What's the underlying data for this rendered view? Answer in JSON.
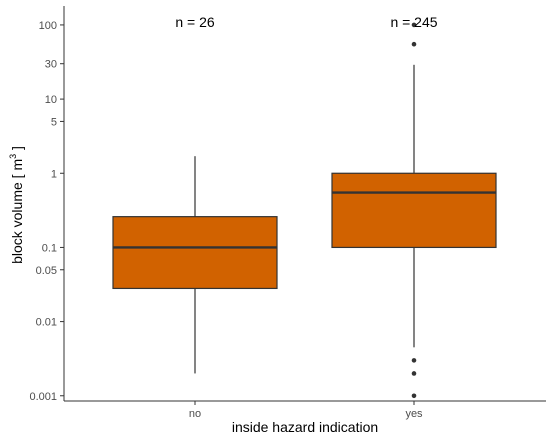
{
  "chart_data": {
    "type": "box",
    "ylabel": "block volume [ m",
    "ylabel_superscript": "3",
    "ylabel_suffix": " ]",
    "xlabel": "inside hazard indication",
    "yscale": "log",
    "ylim": [
      0.00085,
      180
    ],
    "yticks": [
      {
        "value": 0.001,
        "label": "0.001"
      },
      {
        "value": 0.01,
        "label": "0.01"
      },
      {
        "value": 0.05,
        "label": "0.05"
      },
      {
        "value": 0.1,
        "label": "0.1"
      },
      {
        "value": 1,
        "label": "1"
      },
      {
        "value": 5,
        "label": "5"
      },
      {
        "value": 10,
        "label": "10"
      },
      {
        "value": 30,
        "label": "30"
      },
      {
        "value": 100,
        "label": "100"
      }
    ],
    "categories": [
      "no",
      "yes"
    ],
    "fill_color": "#D16200",
    "boxes": [
      {
        "category": "no",
        "annotation": "n = 26",
        "whisker_low": 0.002,
        "q1": 0.028,
        "median": 0.1,
        "q3": 0.26,
        "whisker_high": 1.7,
        "outliers": []
      },
      {
        "category": "yes",
        "annotation": "n = 245",
        "whisker_low": 0.0045,
        "q1": 0.1,
        "median": 0.55,
        "q3": 1.0,
        "whisker_high": 29,
        "outliers": [
          0.001,
          0.002,
          0.003,
          55,
          100
        ]
      }
    ]
  }
}
